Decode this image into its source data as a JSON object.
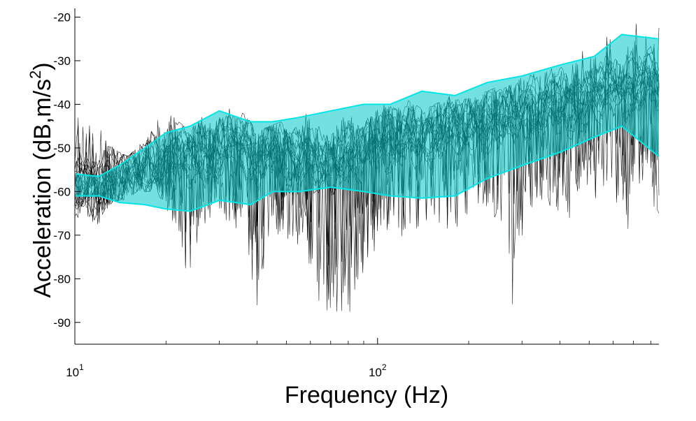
{
  "chart_data": {
    "type": "area",
    "title": "",
    "xlabel": "Frequency (Hz)",
    "ylabel_main": "Acceleration (dB,m/s",
    "ylabel_sup": "2",
    "ylabel_end": ")",
    "x_scale": "log",
    "xlim": [
      10,
      850
    ],
    "ylim": [
      -95,
      -18
    ],
    "x_ticks": [
      {
        "value": 10,
        "base": "10",
        "exp": "1"
      },
      {
        "value": 100,
        "base": "10",
        "exp": "2"
      }
    ],
    "y_ticks": [
      {
        "value": -20,
        "label": "-20"
      },
      {
        "value": -30,
        "label": "-30"
      },
      {
        "value": -40,
        "label": "-40"
      },
      {
        "value": -50,
        "label": "-50"
      },
      {
        "value": -60,
        "label": "-60"
      },
      {
        "value": -70,
        "label": "-70"
      },
      {
        "value": -80,
        "label": "-80"
      },
      {
        "value": -90,
        "label": "-90"
      }
    ],
    "grid": false,
    "band_color": "#00c8c8",
    "band_edge_color": "#00e6e6",
    "trace_color": "#000000",
    "band": {
      "frequency": [
        10,
        12,
        14,
        17,
        20,
        24,
        30,
        38,
        45,
        55,
        70,
        90,
        110,
        140,
        180,
        230,
        300,
        400,
        520,
        640,
        850
      ],
      "upper": [
        -56,
        -56.5,
        -54,
        -50,
        -46.5,
        -45,
        -41.5,
        -44,
        -44,
        -43,
        -41.5,
        -40,
        -40,
        -37,
        -38,
        -35,
        -33.5,
        -31,
        -29,
        -24,
        -25
      ],
      "lower": [
        -61,
        -61,
        -62.5,
        -63,
        -64,
        -64.5,
        -62,
        -63,
        -60,
        -60,
        -59,
        -60,
        -61,
        -61.5,
        -61,
        -57,
        -54,
        -51,
        -47.5,
        -45,
        -52
      ]
    },
    "traces": {
      "count": 20,
      "frequency": [
        10,
        11,
        12,
        13,
        14,
        15,
        16,
        17,
        18,
        19,
        20,
        22,
        24,
        26,
        28,
        30,
        33,
        36,
        40,
        44,
        48,
        52,
        57,
        62,
        68,
        74,
        80,
        88,
        96,
        105,
        115,
        125,
        140,
        155,
        170,
        190,
        210,
        230,
        250,
        280,
        310,
        350,
        390,
        430,
        480,
        530,
        590,
        650,
        720,
        790,
        850
      ],
      "median": [
        -58,
        -59,
        -58,
        -57,
        -56,
        -55,
        -55,
        -54,
        -53,
        -53,
        -52,
        -51,
        -52,
        -50,
        -51,
        -50,
        -49,
        -48,
        -52,
        -50,
        -51,
        -52,
        -50,
        -53,
        -54,
        -52,
        -50,
        -51,
        -49,
        -48,
        -47,
        -46,
        -48,
        -46,
        -44,
        -46,
        -44,
        -43,
        -42,
        -43,
        -41,
        -40,
        -39,
        -40,
        -38,
        -37,
        -36,
        -36,
        -35,
        -34,
        -35
      ],
      "range_max": [
        -39,
        -42,
        -45,
        -48,
        -51,
        -52,
        -50,
        -48,
        -46,
        -42,
        -41,
        -44,
        -46,
        -42,
        -44,
        -43,
        -40,
        -42,
        -46,
        -45,
        -44,
        -47,
        -41,
        -44,
        -47,
        -44,
        -42,
        -45,
        -42,
        -40,
        -41,
        -39,
        -41,
        -40,
        -38,
        -39,
        -38,
        -37,
        -36,
        -35,
        -33,
        -33,
        -31,
        -32,
        -27,
        -26,
        -23,
        -27,
        -21,
        -23,
        -22
      ],
      "range_min": [
        -66,
        -66,
        -68,
        -63,
        -62,
        -62,
        -60,
        -60,
        -60,
        -61,
        -64,
        -70,
        -85,
        -69,
        -66,
        -65,
        -68,
        -70,
        -88,
        -73,
        -70,
        -72,
        -74,
        -82,
        -92,
        -88,
        -89,
        -80,
        -75,
        -70,
        -68,
        -73,
        -67,
        -66,
        -70,
        -68,
        -63,
        -66,
        -69,
        -87,
        -65,
        -62,
        -65,
        -68,
        -58,
        -62,
        -57,
        -73,
        -60,
        -58,
        -70
      ]
    }
  }
}
